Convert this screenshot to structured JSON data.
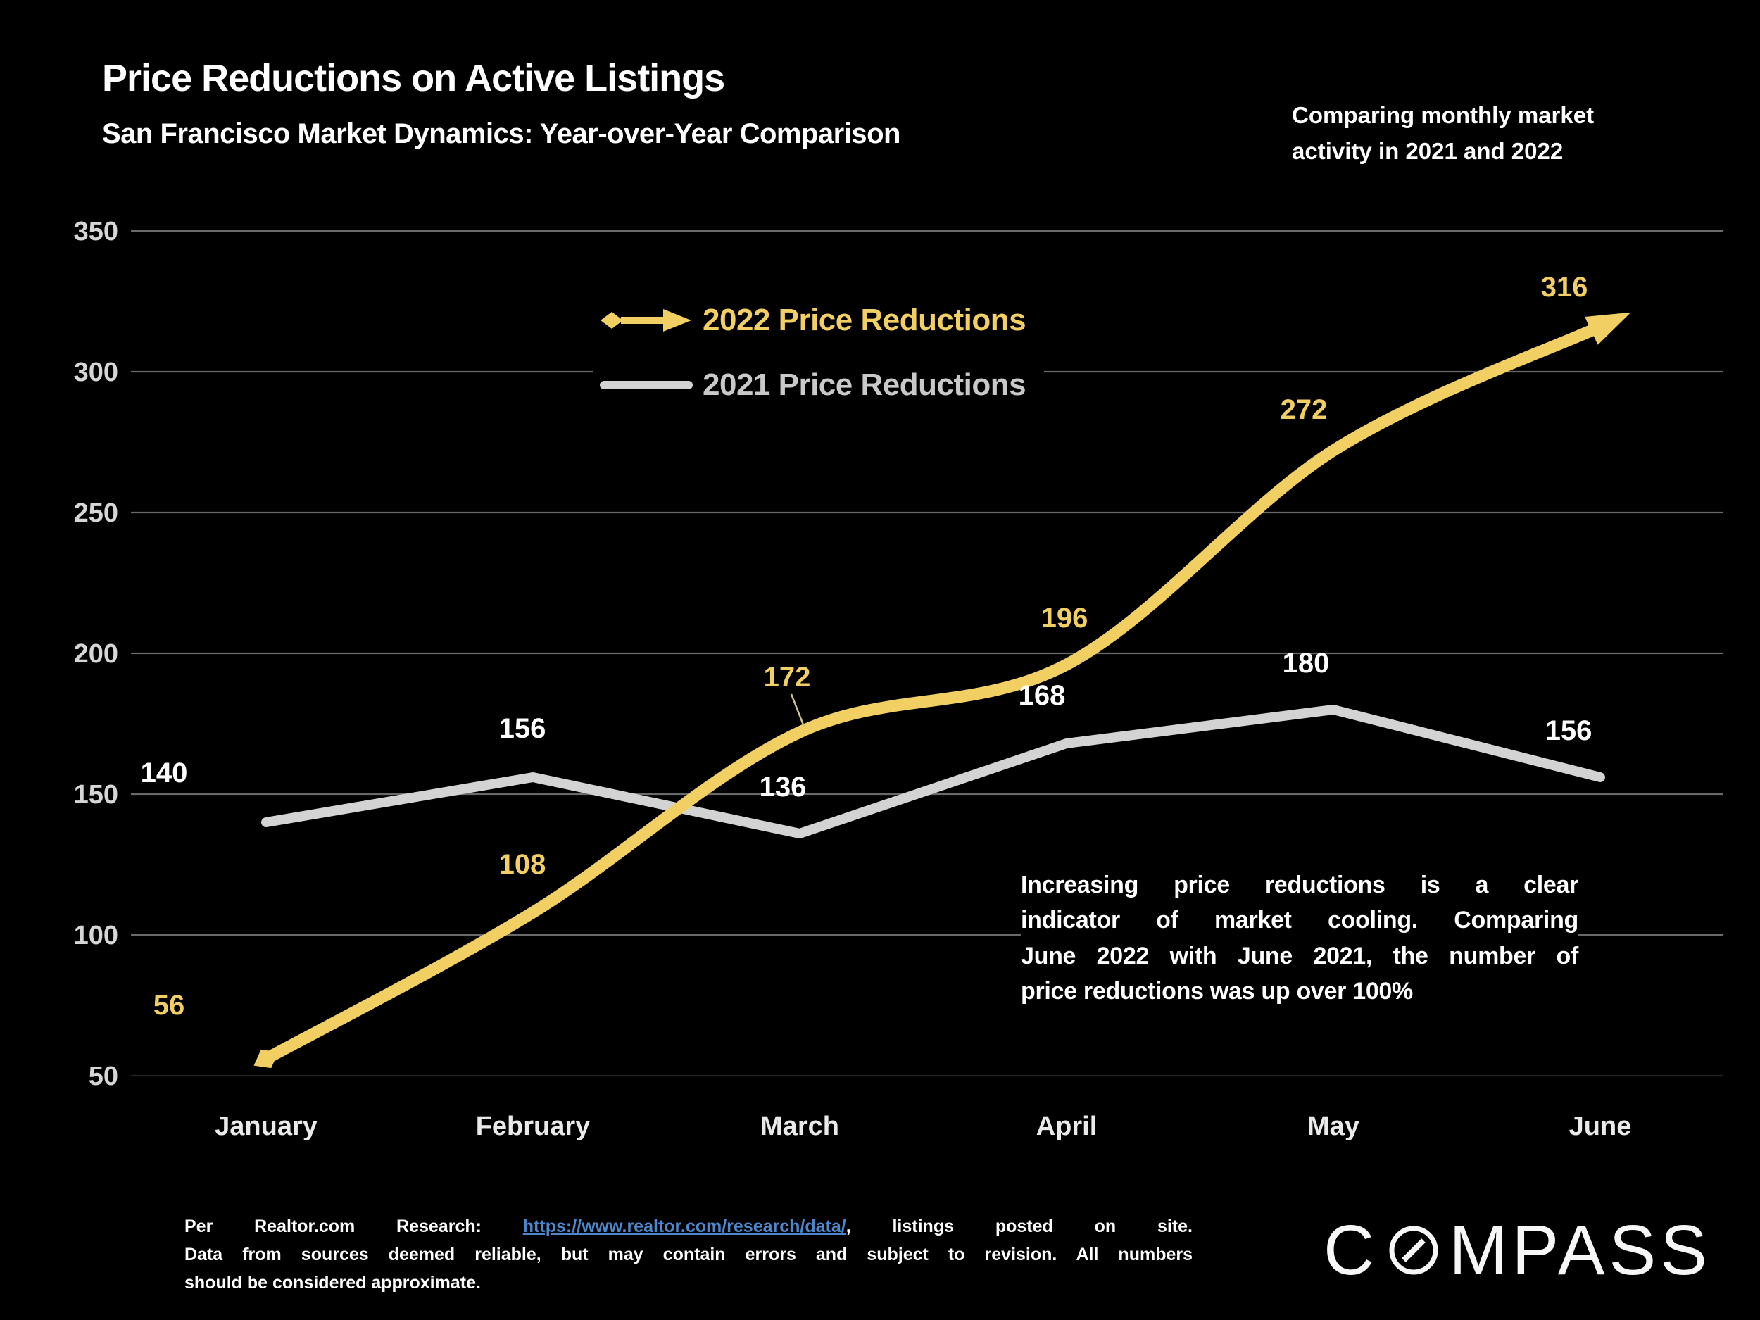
{
  "header": {
    "title": "Price Reductions on Active Listings",
    "subtitle": "San Francisco Market Dynamics: Year-over-Year Comparison",
    "note_lines": [
      "Comparing monthly market",
      "activity in 2021 and 2022"
    ]
  },
  "legend": {
    "entry_2022": "2022 Price Reductions",
    "entry_2021": "2021 Price Reductions"
  },
  "chart_data": {
    "type": "line",
    "categories": [
      "January",
      "February",
      "March",
      "April",
      "May",
      "June"
    ],
    "series": [
      {
        "name": "2022 Price Reductions",
        "values": [
          56,
          108,
          172,
          196,
          272,
          316
        ],
        "color": "#F2CF63",
        "style": "smooth",
        "start_marker": "diamond",
        "end_marker": "arrow"
      },
      {
        "name": "2021 Price Reductions",
        "values": [
          140,
          156,
          136,
          168,
          180,
          156
        ],
        "color": "#D3D3D3",
        "style": "straight",
        "start_marker": "none",
        "end_marker": "none"
      }
    ],
    "ylim": [
      50,
      350
    ],
    "yticks": [
      50,
      100,
      150,
      200,
      250,
      300,
      350
    ],
    "grid": "horizontal",
    "legend_position": "top-center",
    "title": "Price Reductions on Active Listings",
    "xlabel": "",
    "ylabel": ""
  },
  "annotation": {
    "lines": [
      "Increasing price reductions is a clear",
      "indicator of market cooling. Comparing",
      "June 2022 with June 2021, the number of",
      "price reductions was up over 100%"
    ]
  },
  "footer": {
    "line1_prefix": "Per Realtor.com Research: ",
    "link_text": "https://www.realtor.com/research/data/",
    "line1_suffix": ", listings posted on site.",
    "line2": "Data from sources deemed reliable, but may contain errors and subject to revision. All numbers",
    "line3": "should be considered approximate."
  },
  "logo": {
    "prefix": "C",
    "suffix": "MPASS"
  },
  "colors": {
    "background": "#000000",
    "accent_yellow": "#F2CF63",
    "line_gray": "#D3D3D3",
    "gridline": "#696969",
    "axis_label": "#D6D6D6",
    "month_label": "#EAEAEA",
    "data_label_2021": "#FFFFFF",
    "link_blue": "#4D88CC"
  }
}
